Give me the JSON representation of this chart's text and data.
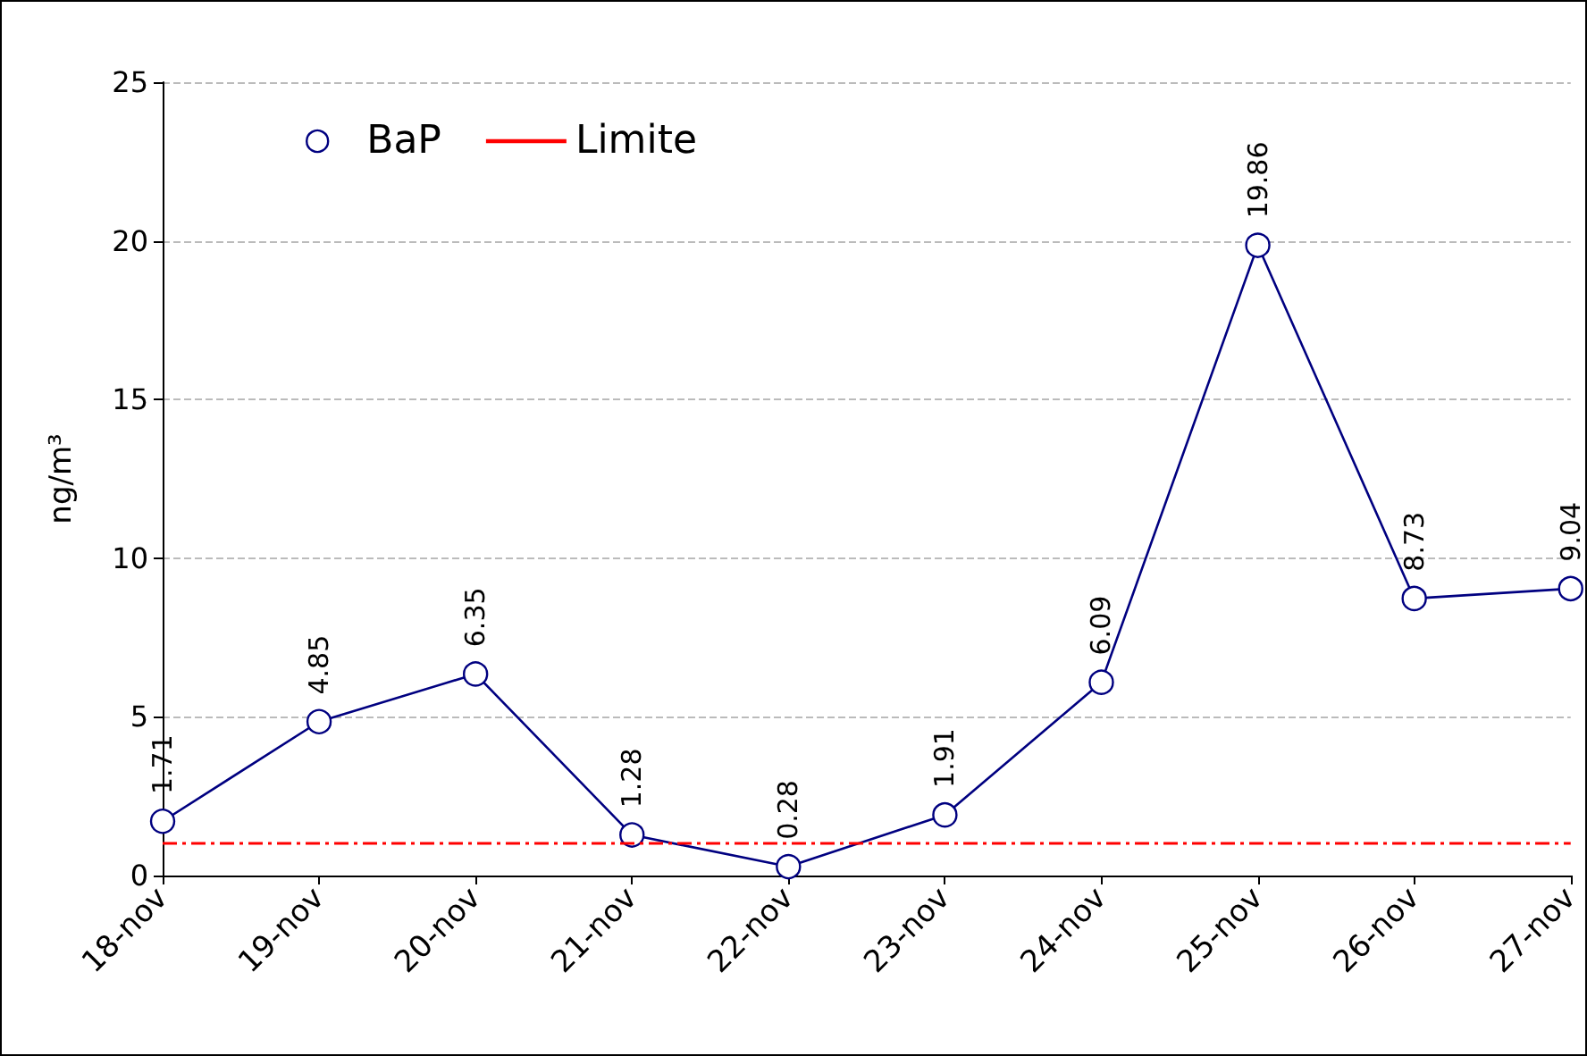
{
  "chart_data": {
    "type": "line",
    "ylabel": "ng/m³",
    "categories": [
      "18-nov",
      "19-nov",
      "20-nov",
      "21-nov",
      "22-nov",
      "23-nov",
      "24-nov",
      "25-nov",
      "26-nov",
      "27-nov"
    ],
    "series": [
      {
        "name": "BaP",
        "color": "#000080",
        "values": [
          1.71,
          4.85,
          6.35,
          1.28,
          0.28,
          1.91,
          6.09,
          19.86,
          8.73,
          9.04
        ]
      }
    ],
    "ylim": [
      0,
      25
    ],
    "yticks": [
      0,
      5,
      10,
      15,
      20,
      25
    ],
    "grid": "y",
    "legend": "top left",
    "marker": "circle",
    "line_style": "solid",
    "data_labels": true,
    "ref_lines": [
      {
        "axis": "y",
        "value": 1,
        "label": "Limite",
        "color": "#ff0000",
        "line_style": "dashed"
      }
    ]
  }
}
